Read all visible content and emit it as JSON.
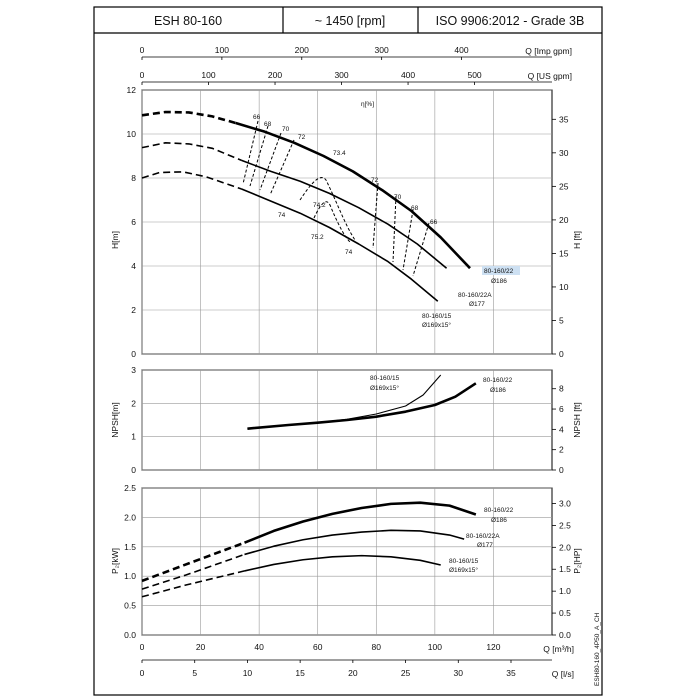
{
  "header": {
    "model": "ESH 80-160",
    "speed": "~ 1450 [rpm]",
    "standard": "ISO 9906:2012 - Grade 3B"
  },
  "footer_code": "ESH80-160_4P50_A_CH",
  "axes": {
    "q_imp_label": "Q [Imp gpm]",
    "q_us_label": "Q [US gpm]",
    "q_m3h_label": "Q [m³/h]",
    "q_ls_label": "Q [l/s]",
    "imp_ticks": [
      "0",
      "100",
      "200",
      "300",
      "400"
    ],
    "us_ticks": [
      "0",
      "100",
      "200",
      "300",
      "400",
      "500"
    ],
    "m3h_ticks": [
      "0",
      "20",
      "40",
      "60",
      "80",
      "100",
      "120"
    ],
    "ls_ticks": [
      "0",
      "5",
      "10",
      "15",
      "20",
      "25",
      "30",
      "35"
    ]
  },
  "chart_data": [
    {
      "type": "line",
      "panel": "head",
      "xlabel": "Q [m³/h]",
      "ylabel": "H[m]",
      "ylabel_right": "H [ft]",
      "xlim": [
        0,
        140
      ],
      "ylim": [
        0,
        12
      ],
      "yticks": [
        "0",
        "2",
        "4",
        "6",
        "8",
        "10",
        "12"
      ],
      "yticks_right": [
        "0",
        "5",
        "10",
        "15",
        "20",
        "25",
        "30",
        "35"
      ],
      "grid": true,
      "efficiency_label": "η[%]",
      "series": [
        {
          "name": "80-160/22",
          "sub": "Ø186",
          "highlight": "#cde0f2",
          "dashed_x": [
            0,
            8,
            16,
            24,
            32
          ],
          "dashed_y": [
            10.85,
            11.0,
            10.98,
            10.8,
            10.5
          ],
          "x": [
            32,
            42,
            52,
            62,
            72,
            82,
            92,
            102,
            112
          ],
          "y": [
            10.5,
            10.1,
            9.6,
            9.0,
            8.3,
            7.45,
            6.5,
            5.3,
            3.9
          ]
        },
        {
          "name": "80-160/22A",
          "sub": "Ø177",
          "dashed_x": [
            0,
            8,
            16,
            24,
            34
          ],
          "dashed_y": [
            9.38,
            9.6,
            9.55,
            9.35,
            8.8
          ],
          "x": [
            34,
            44,
            54,
            64,
            74,
            84,
            94,
            104
          ],
          "y": [
            8.8,
            8.3,
            7.85,
            7.3,
            6.65,
            5.9,
            5.0,
            3.9
          ]
        },
        {
          "name": "80-160/15",
          "sub": "Ø169x15°",
          "dashed_x": [
            0,
            6,
            14,
            22,
            34
          ],
          "dashed_y": [
            8.0,
            8.25,
            8.28,
            8.05,
            7.5
          ],
          "x": [
            34,
            44,
            54,
            64,
            74,
            84,
            92,
            101
          ],
          "y": [
            7.5,
            6.95,
            6.4,
            5.75,
            5.0,
            4.2,
            3.4,
            2.4
          ]
        }
      ],
      "efficiency_labels": [
        "66",
        "68",
        "70",
        "72",
        "73.4",
        "74.2",
        "74",
        "75.2",
        "74",
        "72",
        "70",
        "68",
        "66"
      ]
    },
    {
      "type": "line",
      "panel": "npsh",
      "xlabel": "Q [m³/h]",
      "ylabel": "NPSH[m]",
      "ylabel_right": "NPSH [ft]",
      "xlim": [
        0,
        140
      ],
      "ylim": [
        0,
        3
      ],
      "yticks": [
        "0",
        "1",
        "2",
        "3"
      ],
      "yticks_right": [
        "0",
        "2",
        "4",
        "6",
        "8"
      ],
      "grid": true,
      "series": [
        {
          "name": "80-160/15",
          "sub": "Ø169x15°",
          "x": [
            36,
            50,
            60,
            70,
            80,
            90,
            96,
            102
          ],
          "y": [
            1.24,
            1.34,
            1.42,
            1.52,
            1.68,
            1.92,
            2.25,
            2.85
          ]
        },
        {
          "name": "80-160/22",
          "sub": "Ø186",
          "x": [
            36,
            50,
            60,
            70,
            80,
            90,
            100,
            107,
            114
          ],
          "y": [
            1.24,
            1.35,
            1.42,
            1.5,
            1.6,
            1.75,
            1.95,
            2.2,
            2.6
          ]
        }
      ]
    },
    {
      "type": "line",
      "panel": "power",
      "xlabel": "Q [m³/h]",
      "ylabel": "P₂[kW]",
      "ylabel_right": "P₂[HP]",
      "xlim": [
        0,
        140
      ],
      "ylim": [
        0,
        2.5
      ],
      "yticks": [
        "0.0",
        "0.5",
        "1.0",
        "1.5",
        "2.0",
        "2.5"
      ],
      "yticks_right": [
        "0.0",
        "0.5",
        "1.0",
        "1.5",
        "2.0",
        "2.5",
        "3.0"
      ],
      "grid": true,
      "series": [
        {
          "name": "80-160/22",
          "sub": "Ø186",
          "dashed_x": [
            0,
            15,
            35
          ],
          "dashed_y": [
            0.92,
            1.2,
            1.57
          ],
          "x": [
            35,
            45,
            55,
            65,
            75,
            85,
            95,
            105,
            114
          ],
          "y": [
            1.57,
            1.77,
            1.93,
            2.06,
            2.16,
            2.23,
            2.25,
            2.2,
            2.05
          ]
        },
        {
          "name": "80-160/22A",
          "sub": "Ø177",
          "dashed_x": [
            0,
            15,
            35
          ],
          "dashed_y": [
            0.78,
            1.02,
            1.37
          ],
          "x": [
            35,
            45,
            55,
            65,
            75,
            85,
            95,
            105,
            110
          ],
          "y": [
            1.37,
            1.51,
            1.62,
            1.7,
            1.75,
            1.78,
            1.77,
            1.7,
            1.63
          ]
        },
        {
          "name": "80-160/15",
          "sub": "Ø169x15°",
          "dashed_x": [
            0,
            15,
            35
          ],
          "dashed_y": [
            0.65,
            0.85,
            1.09
          ],
          "x": [
            35,
            45,
            55,
            65,
            75,
            85,
            95,
            102
          ],
          "y": [
            1.09,
            1.2,
            1.28,
            1.33,
            1.35,
            1.33,
            1.27,
            1.19
          ]
        }
      ]
    }
  ]
}
